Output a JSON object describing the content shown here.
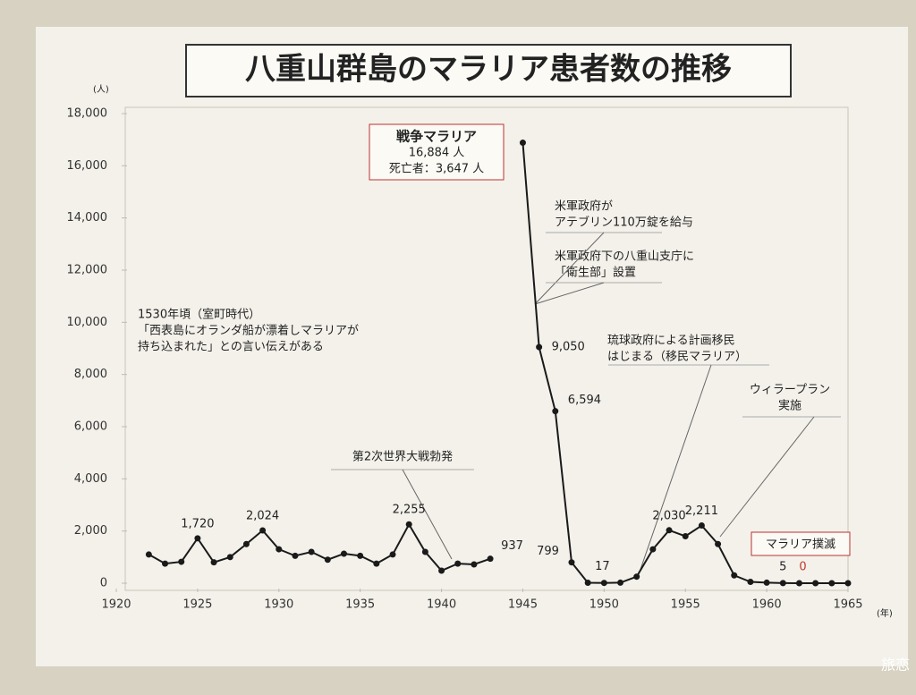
{
  "chart_data": {
    "type": "line",
    "title": "八重山群島のマラリア患者数の推移",
    "y_unit": "(人)",
    "x_unit": "(年)",
    "x": [
      1922,
      1923,
      1924,
      1925,
      1926,
      1927,
      1928,
      1929,
      1930,
      1931,
      1932,
      1933,
      1934,
      1935,
      1936,
      1937,
      1938,
      1939,
      1940,
      1941,
      1942,
      1943,
      1944,
      1945,
      1946,
      1947,
      1948,
      1949,
      1950,
      1951,
      1952,
      1953,
      1954,
      1955,
      1956,
      1957,
      1958,
      1959,
      1960,
      1961,
      1962,
      1963,
      1964,
      1965
    ],
    "series": [
      {
        "color": "#1a1a1a",
        "values": [
          1100,
          750,
          820,
          1720,
          800,
          1000,
          1500,
          2024,
          1300,
          1050,
          1200,
          900,
          1130,
          1050,
          750,
          1100,
          2255,
          1200,
          480,
          750,
          720,
          937,
          null,
          16884,
          9050,
          6594,
          799,
          17,
          10,
          20,
          250,
          1300,
          2030,
          1800,
          2211,
          1500,
          300,
          50,
          20,
          5,
          0,
          0,
          0,
          0
        ],
        "value_labels": [
          null,
          null,
          null,
          "1,720",
          null,
          null,
          null,
          "2,024",
          null,
          null,
          null,
          null,
          null,
          null,
          null,
          null,
          "2,255",
          null,
          null,
          null,
          null,
          "937",
          null,
          null,
          "9,050",
          "6,594",
          "799",
          "17",
          null,
          null,
          null,
          null,
          "2,030",
          null,
          "2,211",
          null,
          null,
          null,
          null,
          "5",
          "0",
          null,
          null,
          null
        ]
      }
    ],
    "xlim": [
      1920,
      1965
    ],
    "xticks": [
      1920,
      1925,
      1930,
      1935,
      1940,
      1945,
      1950,
      1955,
      1960,
      1965
    ],
    "ylim": [
      0,
      18000
    ],
    "yticks": [
      0,
      {
        "value": 2000,
        "label": "2,000"
      },
      {
        "value": 4000,
        "label": "4,000"
      },
      {
        "value": 6000,
        "label": "6,000"
      },
      {
        "value": 8000,
        "label": "8,000"
      },
      {
        "value": 10000,
        "label": "10,000"
      },
      {
        "value": 12000,
        "label": "12,000"
      },
      {
        "value": 14000,
        "label": "14,000"
      },
      {
        "value": 16000,
        "label": "16,000"
      },
      {
        "value": 18000,
        "label": "18,000"
      }
    ],
    "annotations": [
      {
        "lines": [
          "戦争マラリア",
          "16,884 人",
          "死亡者：3,647 人"
        ]
      },
      {
        "lines": [
          "米軍政府が",
          "アテブリン110万錠を給与"
        ]
      },
      {
        "lines": [
          "米軍政府下の八重山支庁に",
          "「衛生部」設置"
        ]
      },
      {
        "lines": [
          "1530年頃（室町時代）",
          "「西表島にオランダ船が漂着しマラリアが",
          "持ち込まれた」との言い伝えがある"
        ]
      },
      {
        "lines": [
          "第2次世界大戦勃発"
        ]
      },
      {
        "lines": [
          "琉球政府による計画移民",
          "はじまる（移民マラリア）"
        ]
      },
      {
        "lines": [
          "ウィラープラン",
          "実施"
        ]
      },
      {
        "lines": [
          "マラリア撲滅"
        ]
      }
    ],
    "watermark": "旅恋"
  }
}
